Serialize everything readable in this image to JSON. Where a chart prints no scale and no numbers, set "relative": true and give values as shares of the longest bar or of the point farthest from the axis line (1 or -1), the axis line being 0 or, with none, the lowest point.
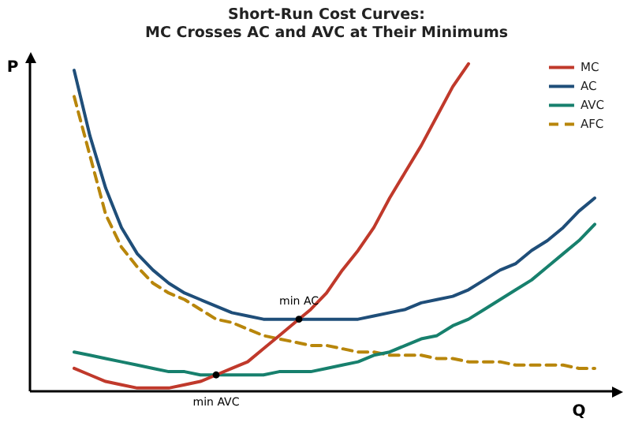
{
  "chart_data": {
    "type": "line",
    "title": "Short-Run Cost Curves:",
    "subtitle": "MC Crosses AC and AVC at Their Minimums",
    "xlabel": "Q",
    "ylabel": "P",
    "relative": true,
    "legend": "top right",
    "marker": "none",
    "categories": [
      null,
      null,
      null,
      null,
      null,
      null,
      null,
      null,
      null,
      null,
      null,
      null,
      null,
      null,
      null,
      null,
      null,
      null,
      null,
      null,
      null,
      null,
      null,
      null,
      null,
      null,
      null,
      null,
      null,
      null,
      null,
      null,
      null,
      null
    ],
    "series": [
      {
        "name": "MC",
        "color": "#c0392b",
        "values": [
          0.07,
          0.05,
          0.03,
          0.02,
          0.01,
          0.01,
          0.01,
          0.02,
          0.03,
          0.05,
          0.07,
          0.09,
          0.13,
          0.17,
          0.21,
          0.25,
          0.3,
          0.37,
          0.43,
          0.5,
          0.59,
          0.67,
          0.75,
          0.84,
          0.93,
          1.0,
          null,
          null,
          null,
          null,
          null,
          null,
          null,
          null
        ]
      },
      {
        "name": "AC",
        "color": "#1f4e79",
        "values": [
          0.98,
          0.78,
          0.62,
          0.5,
          0.42,
          0.37,
          0.33,
          0.3,
          0.28,
          0.26,
          0.24,
          0.23,
          0.22,
          0.22,
          0.22,
          0.22,
          0.22,
          0.22,
          0.22,
          0.23,
          0.24,
          0.25,
          0.27,
          0.28,
          0.29,
          0.31,
          0.34,
          0.37,
          0.39,
          0.43,
          0.46,
          0.5,
          0.55,
          0.59
        ]
      },
      {
        "name": "AVC",
        "color": "#17806d",
        "values": [
          0.12,
          0.11,
          0.1,
          0.09,
          0.08,
          0.07,
          0.06,
          0.06,
          0.05,
          0.05,
          0.05,
          0.05,
          0.05,
          0.06,
          0.06,
          0.06,
          0.07,
          0.08,
          0.09,
          0.11,
          0.12,
          0.14,
          0.16,
          0.17,
          0.2,
          0.22,
          0.25,
          0.28,
          0.31,
          0.34,
          0.38,
          0.42,
          0.46,
          0.51
        ]
      },
      {
        "name": "AFC",
        "color": "#b8860b",
        "line_style": "dashed",
        "values": [
          0.9,
          0.72,
          0.54,
          0.44,
          0.38,
          0.33,
          0.3,
          0.28,
          0.25,
          0.22,
          0.21,
          0.19,
          0.17,
          0.16,
          0.15,
          0.14,
          0.14,
          0.13,
          0.12,
          0.12,
          0.11,
          0.11,
          0.11,
          0.1,
          0.1,
          0.09,
          0.09,
          0.09,
          0.08,
          0.08,
          0.08,
          0.08,
          0.07,
          0.07
        ]
      }
    ],
    "annotations": [
      {
        "text": "min AVC",
        "y": 0.05
      },
      {
        "text": "min AC",
        "y": 0.22
      }
    ]
  }
}
